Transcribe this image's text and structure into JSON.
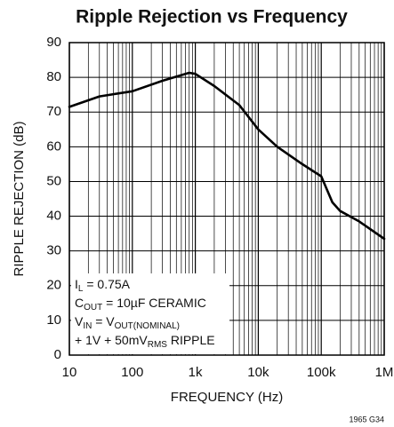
{
  "chart_data": {
    "type": "line",
    "title": "Ripple Rejection vs Frequency",
    "x_label": "FREQUENCY (Hz)",
    "y_label": "RIPPLE REJECTION (dB)",
    "x_scale": "log",
    "x": [
      10,
      30,
      100,
      300,
      800,
      1000,
      2000,
      5000,
      10000,
      20000,
      50000,
      100000,
      150000,
      200000,
      400000,
      1000000
    ],
    "values": [
      71.5,
      74.5,
      76,
      79,
      81.3,
      81,
      77.5,
      72,
      65,
      60,
      55,
      51.5,
      44,
      41.5,
      38.5,
      33.5
    ],
    "color": "#000000",
    "xlim": [
      10,
      1000000
    ],
    "xticks": [
      10,
      100,
      {
        "value": 1000,
        "label": "1k"
      },
      {
        "value": 10000,
        "label": "10k"
      },
      {
        "value": 100000,
        "label": "100k"
      },
      {
        "value": 1000000,
        "label": "1M"
      }
    ],
    "ylim": [
      0,
      90
    ],
    "yticks": [
      0,
      10,
      20,
      30,
      40,
      50,
      60,
      70,
      80,
      90
    ],
    "grid": true,
    "annotation_lines": [
      [
        "I",
        "L",
        " = 0.75A"
      ],
      [
        "C",
        "OUT",
        " = 10µF CERAMIC"
      ],
      [
        "V",
        "IN",
        " = V",
        "OUT(NOMINAL)"
      ],
      [
        "+ 1V + 50mV",
        "RMS",
        " RIPPLE"
      ]
    ],
    "footnote": "1965 G34"
  }
}
